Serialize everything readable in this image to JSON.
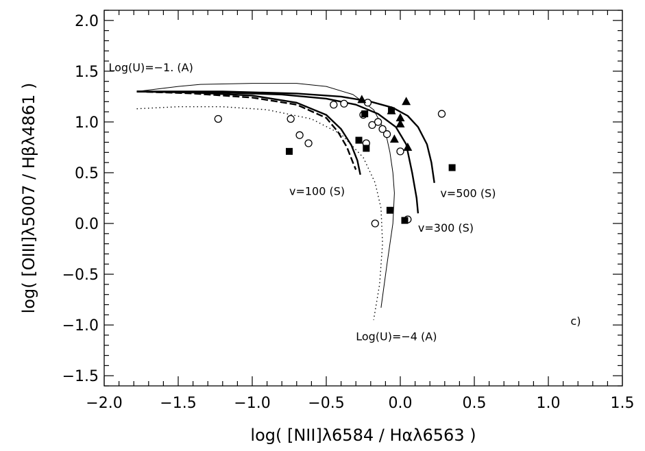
{
  "chart_data": {
    "type": "scatter",
    "xlabel": "log( [NII]λ6584 / Hαλ6563 )",
    "ylabel": "log( [OIII]λ5007 / Hβλ4861 )",
    "xlim": [
      -2.0,
      1.5
    ],
    "ylim": [
      -1.6,
      2.1
    ],
    "xticks": [
      "−2.0",
      "−1.5",
      "−1.0",
      "−0.5",
      "0.0",
      "0.5",
      "1.0",
      "1.5"
    ],
    "yticks": [
      "−1.5",
      "−1.0",
      "−0.5",
      "0.0",
      "0.5",
      "1.0",
      "1.5",
      "2.0"
    ],
    "xtick_values": [
      -2.0,
      -1.5,
      -1.0,
      -0.5,
      0.0,
      0.5,
      1.0,
      1.5
    ],
    "ytick_values": [
      -1.5,
      -1.0,
      -0.5,
      0.0,
      0.5,
      1.0,
      1.5,
      2.0
    ],
    "grid": false,
    "annotations": [
      {
        "text": "Log(U)=−1. (A)",
        "x": -1.97,
        "y": 1.5
      },
      {
        "text": "v=100 (S)",
        "x": -0.75,
        "y": 0.28
      },
      {
        "text": "v=500 (S)",
        "x": 0.27,
        "y": 0.26
      },
      {
        "text": "v=300 (S)",
        "x": 0.12,
        "y": -0.08
      },
      {
        "text": "Log(U)=−4 (A)",
        "x": -0.3,
        "y": -1.15
      },
      {
        "text": "c)",
        "x": 1.15,
        "y": -1.0
      }
    ],
    "series": [
      {
        "marker": "open-circle",
        "points": [
          [
            -1.23,
            1.03
          ],
          [
            -0.74,
            1.03
          ],
          [
            -0.68,
            0.87
          ],
          [
            -0.62,
            0.79
          ],
          [
            -0.45,
            1.17
          ],
          [
            -0.38,
            1.18
          ],
          [
            -0.25,
            1.07
          ],
          [
            -0.22,
            1.19
          ],
          [
            -0.19,
            0.97
          ],
          [
            -0.15,
            1.0
          ],
          [
            -0.12,
            0.93
          ],
          [
            -0.09,
            0.88
          ],
          [
            -0.23,
            0.79
          ],
          [
            0.0,
            0.71
          ],
          [
            0.05,
            0.04
          ],
          [
            -0.17,
            0.0
          ],
          [
            0.28,
            1.08
          ]
        ]
      },
      {
        "marker": "filled-square",
        "points": [
          [
            -0.75,
            0.71
          ],
          [
            -0.28,
            0.82
          ],
          [
            -0.24,
            1.08
          ],
          [
            -0.23,
            0.74
          ],
          [
            -0.06,
            1.11
          ],
          [
            -0.07,
            0.13
          ],
          [
            0.03,
            0.03
          ],
          [
            0.35,
            0.55
          ]
        ]
      },
      {
        "marker": "filled-triangle",
        "points": [
          [
            -0.26,
            1.22
          ],
          [
            -0.06,
            1.11
          ],
          [
            0.0,
            1.04
          ],
          [
            0.0,
            0.98
          ],
          [
            0.04,
            1.2
          ],
          [
            -0.04,
            0.83
          ],
          [
            0.05,
            0.75
          ]
        ]
      },
      {
        "style": "thin-solid",
        "points": [
          [
            -1.78,
            1.3
          ],
          [
            -1.5,
            1.35
          ],
          [
            -1.35,
            1.37
          ],
          [
            -1.0,
            1.38
          ],
          [
            -0.7,
            1.38
          ],
          [
            -0.5,
            1.35
          ],
          [
            -0.32,
            1.27
          ],
          [
            -0.18,
            1.12
          ],
          [
            -0.1,
            0.9
          ],
          [
            -0.07,
            0.7
          ],
          [
            -0.05,
            0.5
          ],
          [
            -0.04,
            0.3
          ],
          [
            -0.05,
            0.0
          ],
          [
            -0.09,
            -0.4
          ],
          [
            -0.13,
            -0.83
          ]
        ]
      },
      {
        "style": "dotted",
        "points": [
          [
            -1.78,
            1.13
          ],
          [
            -1.5,
            1.15
          ],
          [
            -1.2,
            1.15
          ],
          [
            -0.9,
            1.12
          ],
          [
            -0.6,
            1.03
          ],
          [
            -0.4,
            0.88
          ],
          [
            -0.25,
            0.65
          ],
          [
            -0.17,
            0.4
          ],
          [
            -0.13,
            0.15
          ],
          [
            -0.12,
            -0.2
          ],
          [
            -0.14,
            -0.6
          ],
          [
            -0.18,
            -0.95
          ]
        ]
      },
      {
        "style": "thick-solid",
        "points": [
          [
            -1.78,
            1.3
          ],
          [
            -1.4,
            1.29
          ],
          [
            -1.0,
            1.26
          ],
          [
            -0.7,
            1.19
          ],
          [
            -0.5,
            1.07
          ],
          [
            -0.4,
            0.93
          ],
          [
            -0.33,
            0.77
          ],
          [
            -0.29,
            0.62
          ],
          [
            -0.27,
            0.48
          ]
        ]
      },
      {
        "style": "dashed",
        "points": [
          [
            -1.78,
            1.3
          ],
          [
            -1.4,
            1.28
          ],
          [
            -1.0,
            1.24
          ],
          [
            -0.7,
            1.17
          ],
          [
            -0.5,
            1.04
          ],
          [
            -0.42,
            0.9
          ],
          [
            -0.36,
            0.75
          ],
          [
            -0.32,
            0.6
          ],
          [
            -0.3,
            0.53
          ]
        ]
      },
      {
        "style": "thick-solid",
        "points": [
          [
            -1.78,
            1.3
          ],
          [
            -1.2,
            1.29
          ],
          [
            -0.8,
            1.27
          ],
          [
            -0.5,
            1.23
          ],
          [
            -0.3,
            1.17
          ],
          [
            -0.15,
            1.08
          ],
          [
            -0.03,
            0.95
          ],
          [
            0.04,
            0.78
          ],
          [
            0.08,
            0.5
          ],
          [
            0.11,
            0.25
          ],
          [
            0.12,
            0.1
          ]
        ]
      },
      {
        "style": "thick-solid",
        "points": [
          [
            -1.78,
            1.3
          ],
          [
            -1.2,
            1.3
          ],
          [
            -0.7,
            1.28
          ],
          [
            -0.4,
            1.25
          ],
          [
            -0.2,
            1.2
          ],
          [
            -0.05,
            1.14
          ],
          [
            0.05,
            1.06
          ],
          [
            0.12,
            0.95
          ],
          [
            0.18,
            0.78
          ],
          [
            0.21,
            0.6
          ],
          [
            0.23,
            0.4
          ]
        ]
      }
    ]
  }
}
